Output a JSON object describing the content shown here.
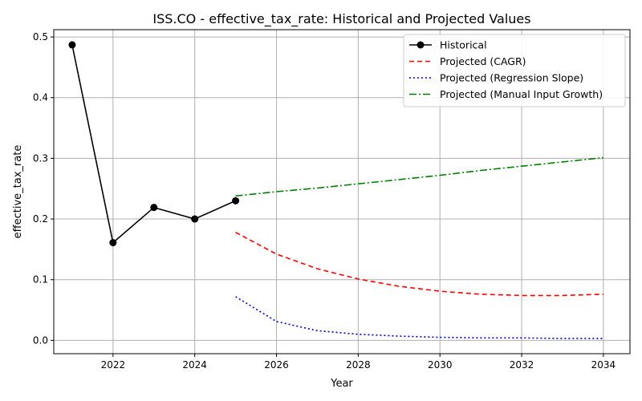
{
  "chart_data": {
    "type": "line",
    "title": "ISS.CO - effective_tax_rate: Historical and Projected Values",
    "xlabel": "Year",
    "ylabel": "effective_tax_rate",
    "xlim": [
      2020.55,
      2034.65
    ],
    "ylim": [
      -0.022,
      0.512
    ],
    "x_ticks": [
      2022,
      2024,
      2026,
      2028,
      2030,
      2032,
      2034
    ],
    "y_ticks": [
      0.0,
      0.1,
      0.2,
      0.3,
      0.4,
      0.5
    ],
    "grid": true,
    "legend_position": "upper right",
    "series": [
      {
        "name": "Historical",
        "color": "#000000",
        "style": "solid-marker",
        "x": [
          2021,
          2022,
          2023,
          2024,
          2025
        ],
        "values": [
          0.487,
          0.161,
          0.219,
          0.2,
          0.23
        ]
      },
      {
        "name": "Projected (CAGR)",
        "color": "#ff0000",
        "style": "dashed",
        "x": [
          2025,
          2026,
          2027,
          2028,
          2029,
          2030,
          2031,
          2032,
          2033,
          2034
        ],
        "values": [
          0.178,
          0.142,
          0.118,
          0.101,
          0.089,
          0.081,
          0.076,
          0.074,
          0.074,
          0.076
        ]
      },
      {
        "name": "Projected (Regression Slope)",
        "color": "#0000cc",
        "style": "dotted",
        "x": [
          2025,
          2026,
          2027,
          2028,
          2029,
          2030,
          2031,
          2032,
          2033,
          2034
        ],
        "values": [
          0.072,
          0.031,
          0.016,
          0.01,
          0.007,
          0.005,
          0.004,
          0.004,
          0.003,
          0.003
        ]
      },
      {
        "name": "Projected (Manual Input Growth)",
        "color": "#008000",
        "style": "dashdot",
        "x": [
          2025,
          2026,
          2027,
          2028,
          2029,
          2030,
          2031,
          2032,
          2033,
          2034
        ],
        "values": [
          0.238,
          0.245,
          0.251,
          0.258,
          0.265,
          0.272,
          0.28,
          0.287,
          0.294,
          0.301
        ]
      }
    ]
  }
}
